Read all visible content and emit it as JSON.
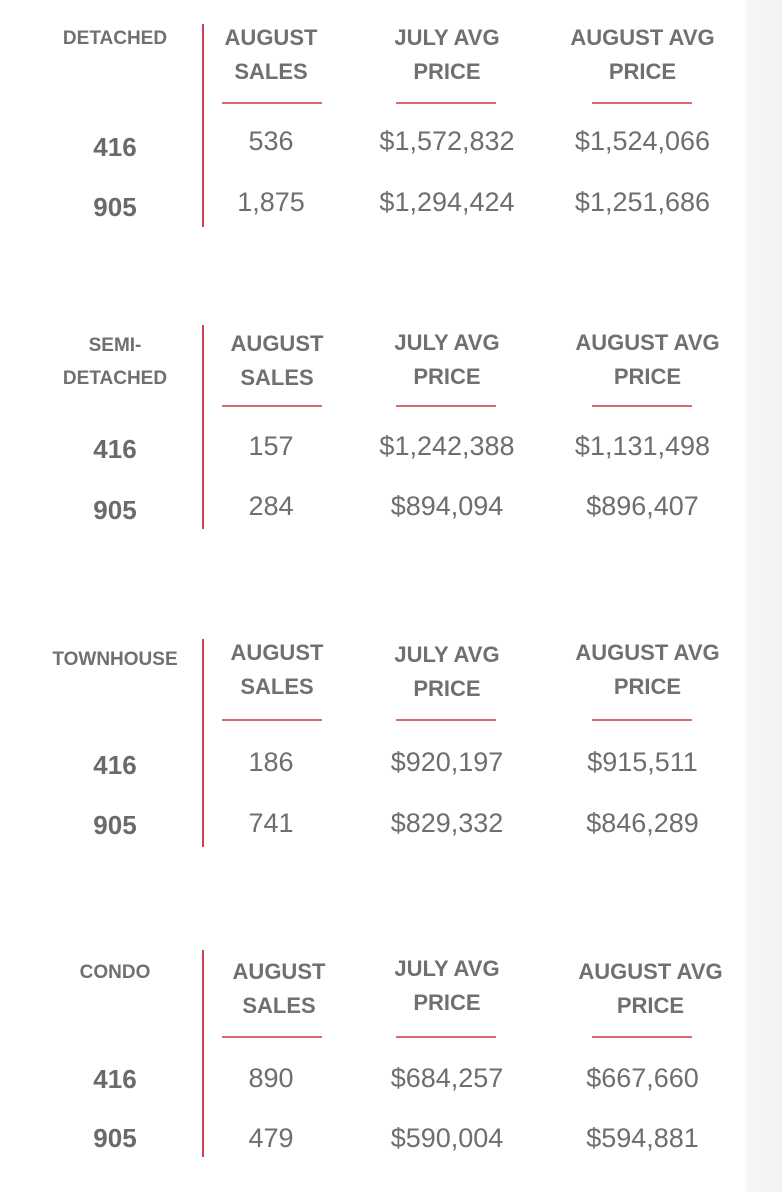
{
  "sections": [
    {
      "type_label": "DETACHED",
      "columns": [
        "AUGUST\nSALES",
        "JULY AVG\nPRICE",
        "AUGUST AVG\nPRICE"
      ],
      "rows": [
        {
          "area": "416",
          "sales": "536",
          "july": "$1,572,832",
          "august": "$1,524,066"
        },
        {
          "area": "905",
          "sales": "1,875",
          "july": "$1,294,424",
          "august": "$1,251,686"
        }
      ]
    },
    {
      "type_label": "SEMI-\nDETACHED",
      "columns": [
        "AUGUST\nSALES",
        "JULY AVG\nPRICE",
        "AUGUST AVG\nPRICE"
      ],
      "rows": [
        {
          "area": "416",
          "sales": "157",
          "july": "$1,242,388",
          "august": "$1,131,498"
        },
        {
          "area": "905",
          "sales": "284",
          "july": "$894,094",
          "august": "$896,407"
        }
      ]
    },
    {
      "type_label": "TOWNHOUSE",
      "columns": [
        "AUGUST\nSALES",
        "JULY AVG\nPRICE",
        "AUGUST AVG\nPRICE"
      ],
      "rows": [
        {
          "area": "416",
          "sales": "186",
          "july": "$920,197",
          "august": "$915,511"
        },
        {
          "area": "905",
          "sales": "741",
          "july": "$829,332",
          "august": "$846,289"
        }
      ]
    },
    {
      "type_label": "CONDO",
      "columns": [
        "AUGUST\nSALES",
        "JULY AVG\nPRICE",
        "AUGUST AVG\nPRICE"
      ],
      "rows": [
        {
          "area": "416",
          "sales": "890",
          "july": "$684,257",
          "august": "$667,660"
        },
        {
          "area": "905",
          "sales": "479",
          "july": "$590,004",
          "august": "$594,881"
        }
      ]
    }
  ],
  "colors": {
    "divider": "#c7434f",
    "underline": "#d96a74",
    "text": "#6e6e6e"
  }
}
